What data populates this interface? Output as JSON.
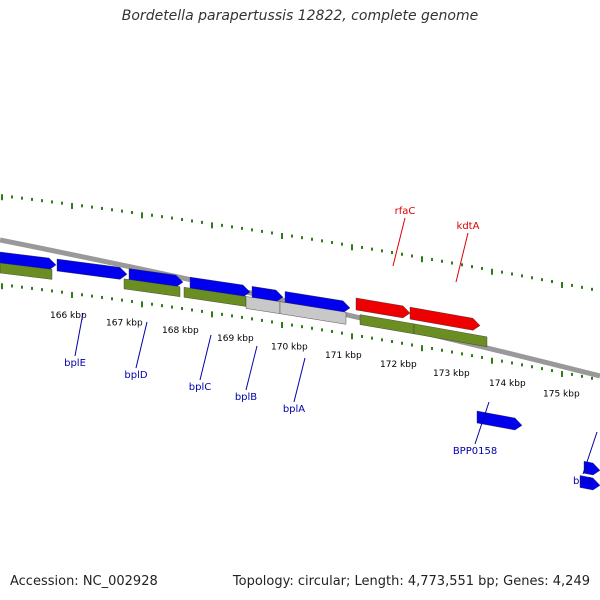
{
  "title": "Bordetella parapertussis 12822, complete genome",
  "footer": {
    "accession": "Accession: NC_002928",
    "summary": "Topology: circular; Length: 4,773,551 bp; Genes: 4,249"
  },
  "colors": {
    "backbone": "#808080",
    "tick": "#2e7d1a",
    "forward_gene": "#0000ee",
    "forward_label": "#0000aa",
    "cds_olive": "#6b8e23",
    "rna_red": "#ee0000",
    "rna_label": "#dd0000",
    "pseudo_gray": "#c8c8c8",
    "kbp_text": "#000000"
  },
  "scale": {
    "kbp_labels": [
      "166 kbp",
      "167 kbp",
      "168 kbp",
      "169 kbp",
      "170 kbp",
      "171 kbp",
      "172 kbp",
      "173 kbp",
      "174 kbp",
      "175 kbp"
    ]
  },
  "genes": [
    {
      "name": "bplE",
      "color": "blue"
    },
    {
      "name": "bplD",
      "color": "blue"
    },
    {
      "name": "bplC",
      "color": "blue"
    },
    {
      "name": "bplB",
      "color": "blue"
    },
    {
      "name": "bplA",
      "color": "blue"
    },
    {
      "name": "BPP0158",
      "color": "blue"
    },
    {
      "name": "birA",
      "color": "blue"
    },
    {
      "name": "rfaC",
      "color": "red"
    },
    {
      "name": "kdtA",
      "color": "red"
    }
  ]
}
